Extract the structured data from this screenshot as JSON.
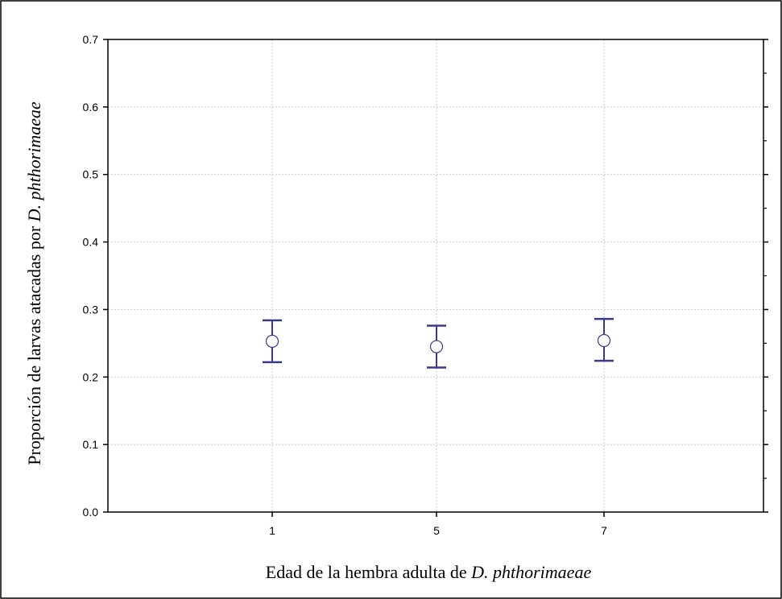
{
  "chart_data": {
    "type": "scatter",
    "subtype": "mean-with-error-bars",
    "x": [
      "1",
      "5",
      "7"
    ],
    "y": [
      0.253,
      0.245,
      0.254
    ],
    "error_upper": [
      0.284,
      0.276,
      0.286
    ],
    "error_lower": [
      0.222,
      0.214,
      0.224
    ],
    "xlabel_parts": [
      {
        "text": "Edad de la hembra adulta de ",
        "italic": false
      },
      {
        "text": "D. phthorimaeae",
        "italic": true
      }
    ],
    "ylabel_parts": [
      {
        "text": "Proporción de larvas atacadas por ",
        "italic": false
      },
      {
        "text": "D. phthorimaeae",
        "italic": true
      }
    ],
    "ylim": [
      0.0,
      0.7
    ],
    "yticks": [
      "0.0",
      "0.1",
      "0.2",
      "0.3",
      "0.4",
      "0.5",
      "0.6",
      "0.7"
    ],
    "grid": true,
    "legend": false,
    "colors": {
      "error_bar": "#3a3a8c",
      "marker_fill": "#ffffff",
      "marker_stroke": "#3a3a8c",
      "grid": "#cccccc",
      "axis": "#000000"
    }
  }
}
